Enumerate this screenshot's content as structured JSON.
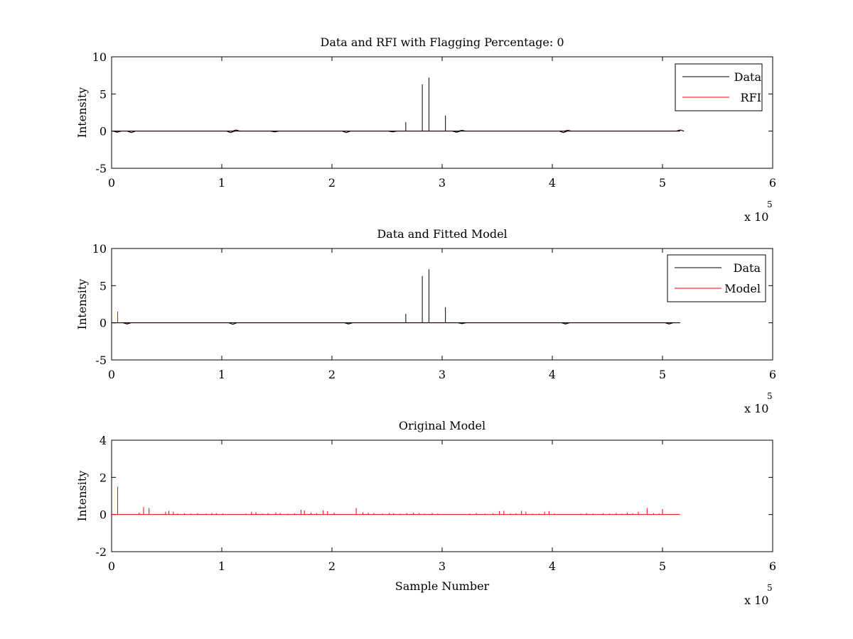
{
  "figure": {
    "background": "#ffffff",
    "axis_color": "#000000"
  },
  "chart_data": [
    {
      "type": "line",
      "title": "Data and RFI with Flagging Percentage: 0",
      "xlabel": "",
      "ylabel": "Intensity",
      "xlim": [
        0,
        600000
      ],
      "ylim": [
        -5,
        10
      ],
      "xticks": [
        0,
        1,
        2,
        3,
        4,
        5,
        6
      ],
      "yticks": [
        -5,
        0,
        5,
        10
      ],
      "x_multiplier": "x 10",
      "x_exponent": "5",
      "x_end": 516000,
      "legend_position": "top-right",
      "series": [
        {
          "name": "Data",
          "color": "#000000",
          "baseline": 0,
          "dips": [
            [
              5000,
              -0.15
            ],
            [
              18000,
              -0.2
            ],
            [
              108000,
              -0.2
            ],
            [
              113000,
              0.15
            ],
            [
              148000,
              -0.1
            ],
            [
              213000,
              -0.2
            ],
            [
              255000,
              -0.1
            ],
            [
              313000,
              -0.15
            ],
            [
              318000,
              0.1
            ],
            [
              410000,
              -0.2
            ],
            [
              414000,
              0.1
            ],
            [
              516000,
              0.15
            ]
          ],
          "spikes": [
            [
              267000,
              1.2
            ],
            [
              282000,
              6.3
            ],
            [
              288000,
              7.2
            ],
            [
              303000,
              2.1
            ]
          ]
        },
        {
          "name": "RFI",
          "color": "#ff0000",
          "baseline": 0,
          "dips": [],
          "spikes": []
        }
      ]
    },
    {
      "type": "line",
      "title": "Data and Fitted Model",
      "xlabel": "",
      "ylabel": "Intensity",
      "xlim": [
        0,
        600000
      ],
      "ylim": [
        -5,
        10
      ],
      "xticks": [
        0,
        1,
        2,
        3,
        4,
        5,
        6
      ],
      "yticks": [
        -5,
        0,
        5,
        10
      ],
      "x_multiplier": "x 10",
      "x_exponent": "5",
      "x_end": 516000,
      "legend_position": "top-right",
      "series": [
        {
          "name": "Data",
          "color": "#000000",
          "baseline": 0,
          "dips": [
            [
              14000,
              -0.15
            ],
            [
              110000,
              -0.2
            ],
            [
              215000,
              -0.15
            ],
            [
              318000,
              -0.1
            ],
            [
              412000,
              -0.15
            ],
            [
              506000,
              -0.15
            ]
          ],
          "spikes": [
            [
              267000,
              1.2
            ],
            [
              282000,
              6.3
            ],
            [
              288000,
              7.2
            ],
            [
              303000,
              2.1
            ]
          ]
        },
        {
          "name": "Model",
          "color": "#ff0000",
          "baseline": 0,
          "dips": [],
          "spikes": [
            [
              5500,
              1.5
            ]
          ]
        }
      ]
    },
    {
      "type": "line",
      "title": "Original Model",
      "xlabel": "Sample Number",
      "ylabel": "Intensity",
      "xlim": [
        0,
        600000
      ],
      "ylim": [
        -2,
        4
      ],
      "xticks": [
        0,
        1,
        2,
        3,
        4,
        5,
        6
      ],
      "yticks": [
        -2,
        0,
        2,
        4
      ],
      "x_multiplier": "x 10",
      "x_exponent": "5",
      "x_end": 516000,
      "legend_position": "none",
      "series": [
        {
          "name": "Model",
          "color": "#ff0000",
          "baseline": 0,
          "dips": [],
          "spikes": [
            [
              5500,
              1.5
            ],
            [
              25000,
              0.1
            ],
            [
              29000,
              0.4
            ],
            [
              34000,
              0.35
            ],
            [
              49000,
              0.15
            ],
            [
              52000,
              0.2
            ],
            [
              56000,
              0.15
            ],
            [
              60000,
              0.05
            ],
            [
              66000,
              0.07
            ],
            [
              72000,
              0.05
            ],
            [
              78000,
              0.07
            ],
            [
              86000,
              0.05
            ],
            [
              91000,
              0.08
            ],
            [
              95000,
              0.07
            ],
            [
              101000,
              0.05
            ],
            [
              122000,
              0.05
            ],
            [
              127000,
              0.15
            ],
            [
              131000,
              0.12
            ],
            [
              137000,
              0.05
            ],
            [
              142000,
              0.08
            ],
            [
              149000,
              0.12
            ],
            [
              153000,
              0.08
            ],
            [
              160000,
              0.05
            ],
            [
              166000,
              0.07
            ],
            [
              172000,
              0.25
            ],
            [
              175000,
              0.22
            ],
            [
              181000,
              0.1
            ],
            [
              186000,
              0.08
            ],
            [
              192000,
              0.22
            ],
            [
              196000,
              0.18
            ],
            [
              202000,
              0.1
            ],
            [
              222000,
              0.35
            ],
            [
              228000,
              0.12
            ],
            [
              233000,
              0.1
            ],
            [
              238000,
              0.08
            ],
            [
              246000,
              0.05
            ],
            [
              252000,
              0.08
            ],
            [
              256000,
              0.07
            ],
            [
              262000,
              0.05
            ],
            [
              268000,
              0.07
            ],
            [
              274000,
              0.1
            ],
            [
              279000,
              0.08
            ],
            [
              284000,
              0.05
            ],
            [
              291000,
              0.08
            ],
            [
              296000,
              0.05
            ],
            [
              325000,
              0.05
            ],
            [
              331000,
              0.08
            ],
            [
              339000,
              0.05
            ],
            [
              346000,
              0.07
            ],
            [
              352000,
              0.18
            ],
            [
              356000,
              0.2
            ],
            [
              362000,
              0.05
            ],
            [
              367000,
              0.07
            ],
            [
              372000,
              0.2
            ],
            [
              376000,
              0.15
            ],
            [
              382000,
              0.05
            ],
            [
              388000,
              0.05
            ],
            [
              393000,
              0.15
            ],
            [
              397000,
              0.18
            ],
            [
              402000,
              0.05
            ],
            [
              426000,
              0.05
            ],
            [
              431000,
              0.08
            ],
            [
              437000,
              0.05
            ],
            [
              446000,
              0.07
            ],
            [
              452000,
              0.05
            ],
            [
              458000,
              0.08
            ],
            [
              463000,
              0.05
            ],
            [
              468000,
              0.1
            ],
            [
              473000,
              0.07
            ],
            [
              478000,
              0.15
            ],
            [
              486000,
              0.35
            ],
            [
              492000,
              0.07
            ],
            [
              497000,
              0.05
            ],
            [
              500000,
              0.3
            ]
          ]
        }
      ]
    }
  ]
}
